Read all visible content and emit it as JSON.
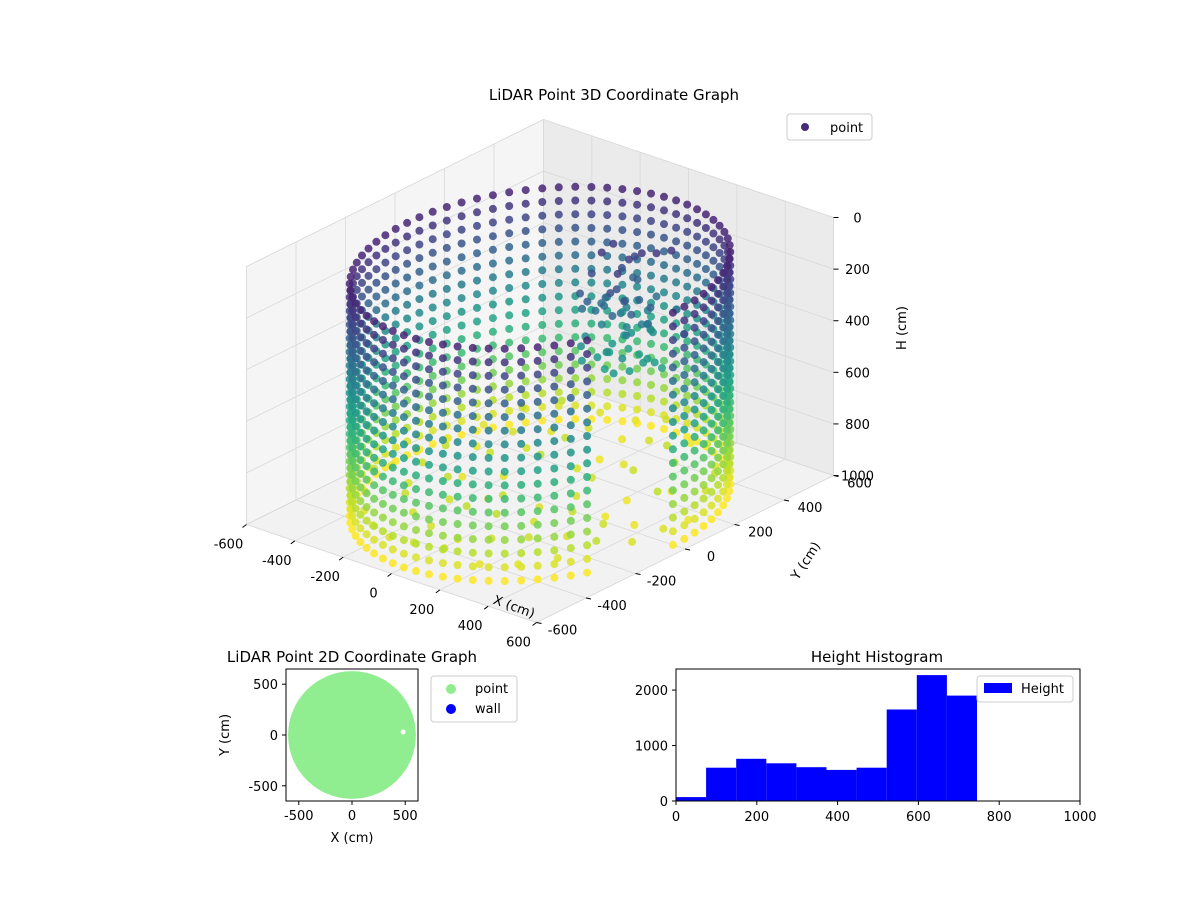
{
  "chart_data": [
    {
      "type": "scatter",
      "projection": "3d",
      "title": "LiDAR Point 3D Coordinate Graph",
      "xlabel": "X (cm)",
      "ylabel": "Y (cm)",
      "zlabel": "H (cm)",
      "xlim": [
        -600,
        600
      ],
      "ylim": [
        -600,
        600
      ],
      "zlim": [
        0,
        1000
      ],
      "z_inverted": true,
      "x_ticks": [
        "-600",
        "-400",
        "-200",
        "0",
        "200",
        "400",
        "600"
      ],
      "y_ticks": [
        "-600",
        "-400",
        "-200",
        "0",
        "200",
        "400",
        "600"
      ],
      "z_ticks": [
        "0",
        "200",
        "400",
        "600",
        "800",
        "1000"
      ],
      "colormap": "viridis",
      "color_by": "height",
      "legend": {
        "position": "top-right",
        "entries": [
          {
            "label": "point",
            "color": "#472c7a"
          }
        ]
      },
      "point_cloud": {
        "shape": "cylinder",
        "radius": 550,
        "height_min": 100,
        "height_max": 1000
      },
      "grid": true
    },
    {
      "type": "scatter",
      "title": "LiDAR Point 2D Coordinate Graph",
      "xlabel": "X (cm)",
      "ylabel": "Y (cm)",
      "xlim": [
        -620,
        620
      ],
      "ylim": [
        -650,
        650
      ],
      "x_ticks": [
        "-500",
        "0",
        "500"
      ],
      "y_ticks": [
        "-500",
        "0",
        "500"
      ],
      "series": [
        {
          "name": "point",
          "color": "#90ee90",
          "shape": "disc",
          "radius": 600
        },
        {
          "name": "wall",
          "color": "#0000ff",
          "values": []
        }
      ],
      "legend": {
        "position": "outside-right"
      }
    },
    {
      "type": "bar",
      "subtype": "histogram",
      "title": "Height Histogram",
      "xlim": [
        0,
        1000
      ],
      "ylim": [
        0,
        2380
      ],
      "x_ticks": [
        "0",
        "200",
        "400",
        "600",
        "800",
        "1000"
      ],
      "y_ticks": [
        "0",
        "1000",
        "2000"
      ],
      "bin_edges": [
        0,
        74.5,
        149,
        223.5,
        298,
        372.5,
        447,
        521.5,
        596,
        670.5,
        745
      ],
      "values": [
        70,
        600,
        760,
        680,
        610,
        560,
        600,
        1650,
        2270,
        1900
      ],
      "series": [
        {
          "name": "Height",
          "color": "#0000ff"
        }
      ],
      "legend": {
        "position": "top-right"
      }
    }
  ]
}
